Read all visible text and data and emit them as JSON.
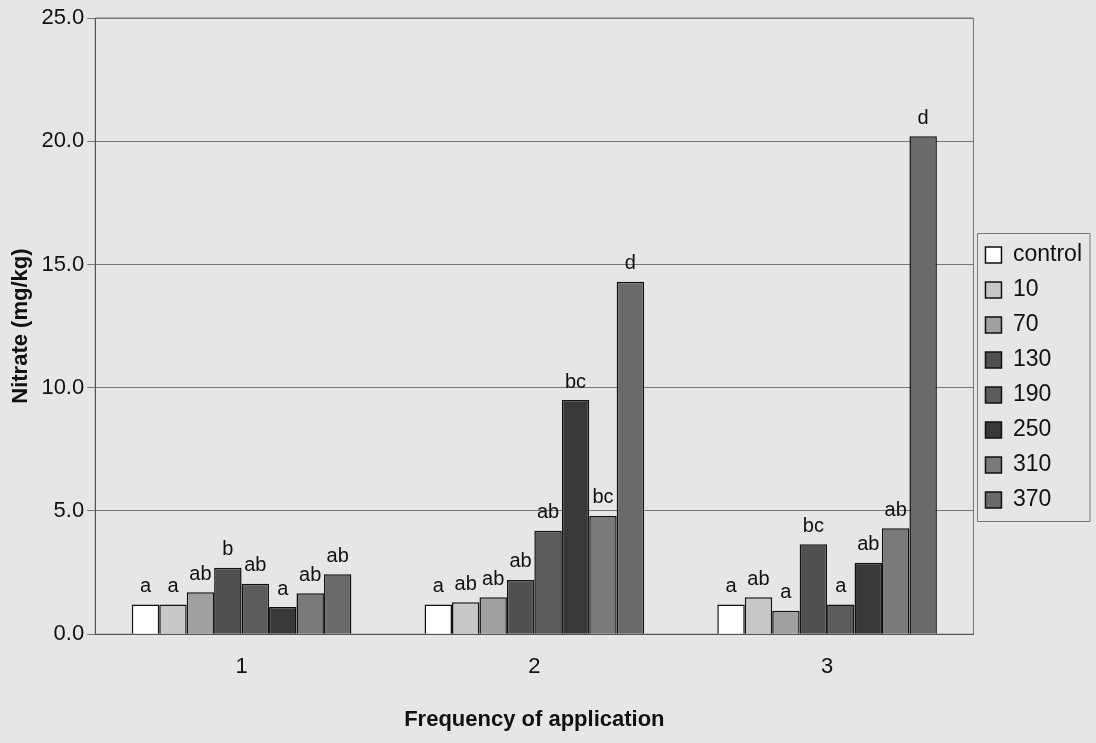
{
  "chart_data": {
    "type": "bar",
    "xlabel": "Frequency of application",
    "ylabel": "Nitrate (mg/kg)",
    "categories": [
      "1",
      "2",
      "3"
    ],
    "series": [
      {
        "name": "control",
        "color": "#ffffff",
        "values": [
          1.2,
          1.2,
          1.2
        ],
        "value_labels": [
          "a",
          "a",
          "a"
        ]
      },
      {
        "name": "10",
        "color": "#c8c8c8",
        "values": [
          1.2,
          1.3,
          1.5
        ],
        "value_labels": [
          "a",
          "ab",
          "ab"
        ]
      },
      {
        "name": "70",
        "color": "#a0a0a0",
        "values": [
          1.7,
          1.5,
          0.95
        ],
        "value_labels": [
          "ab",
          "ab",
          "a"
        ]
      },
      {
        "name": "130",
        "color": "#505050",
        "values": [
          2.7,
          2.2,
          3.65
        ],
        "value_labels": [
          "b",
          "ab",
          "bc"
        ]
      },
      {
        "name": "190",
        "color": "#5c5c5c",
        "values": [
          2.05,
          4.2,
          1.2
        ],
        "value_labels": [
          "ab",
          "ab",
          "a"
        ]
      },
      {
        "name": "250",
        "color": "#383838",
        "values": [
          1.1,
          9.5,
          2.9
        ],
        "value_labels": [
          "a",
          "bc",
          "ab"
        ]
      },
      {
        "name": "310",
        "color": "#7a7a7a",
        "values": [
          1.66,
          4.8,
          4.3
        ],
        "value_labels": [
          "ab",
          "bc",
          "ab"
        ]
      },
      {
        "name": "370",
        "color": "#6a6a6a",
        "values": [
          2.43,
          14.3,
          20.2
        ],
        "value_labels": [
          "ab",
          "d",
          "d"
        ]
      }
    ],
    "ylim": [
      0,
      25
    ],
    "yticks": [
      {
        "value": 0,
        "label": "0.0"
      },
      {
        "value": 5,
        "label": "5.0"
      },
      {
        "value": 10,
        "label": "10.0"
      },
      {
        "value": 15,
        "label": "15.0"
      },
      {
        "value": 20,
        "label": "20.0"
      },
      {
        "value": 25,
        "label": "25.0"
      }
    ],
    "grid": "y",
    "legend": "right"
  }
}
